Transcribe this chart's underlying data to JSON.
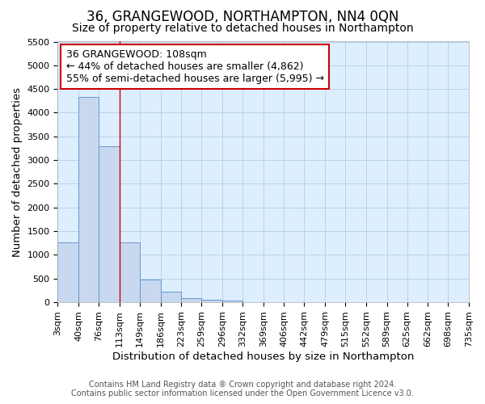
{
  "title": "36, GRANGEWOOD, NORTHAMPTON, NN4 0QN",
  "subtitle": "Size of property relative to detached houses in Northampton",
  "xlabel": "Distribution of detached houses by size in Northampton",
  "ylabel": "Number of detached properties",
  "footer_line1": "Contains HM Land Registry data ® Crown copyright and database right 2024.",
  "footer_line2": "Contains public sector information licensed under the Open Government Licence v3.0.",
  "annotation_title": "36 GRANGEWOOD: 108sqm",
  "annotation_line1": "← 44% of detached houses are smaller (4,862)",
  "annotation_line2": "55% of semi-detached houses are larger (5,995) →",
  "bar_edges": [
    3,
    40,
    76,
    113,
    149,
    186,
    223,
    259,
    296,
    332,
    369,
    406,
    442,
    479,
    515,
    552,
    589,
    625,
    662,
    698,
    735
  ],
  "bar_heights": [
    1270,
    4330,
    3300,
    1265,
    480,
    230,
    90,
    60,
    40,
    0,
    0,
    0,
    0,
    0,
    0,
    0,
    0,
    0,
    0,
    0
  ],
  "bar_color": "#c8d8ee",
  "bar_edge_color": "#6699cc",
  "grid_color": "#b8cce4",
  "background_color": "#ddeeff",
  "red_line_x": 113,
  "ylim": [
    0,
    5500
  ],
  "yticks": [
    0,
    500,
    1000,
    1500,
    2000,
    2500,
    3000,
    3500,
    4000,
    4500,
    5000,
    5500
  ],
  "annotation_box_color": "#ffffff",
  "annotation_box_edge": "#cc0000",
  "red_line_color": "#cc0000",
  "title_fontsize": 12,
  "subtitle_fontsize": 10,
  "axis_label_fontsize": 9.5,
  "tick_fontsize": 8,
  "annotation_fontsize": 9,
  "footer_fontsize": 7
}
